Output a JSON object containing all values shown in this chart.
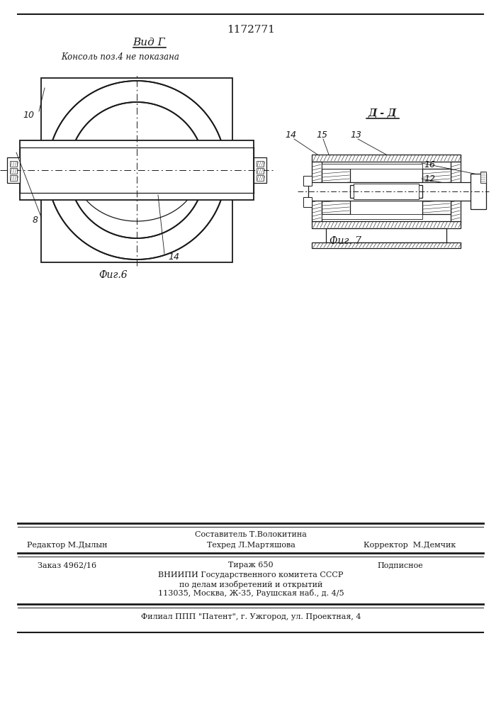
{
  "patent_number": "1172771",
  "fig6_label": "Фиг.6",
  "fig7_label": "Фиг. 7",
  "view_label": "Вид Г",
  "note_label": "Консоль поз.4 не показана",
  "section_label": "Д - Д",
  "line_color": "#1a1a1a",
  "footer_last": "Филиал ППП \"Патент\", г. Ужгород, ул. Проектная, 4"
}
